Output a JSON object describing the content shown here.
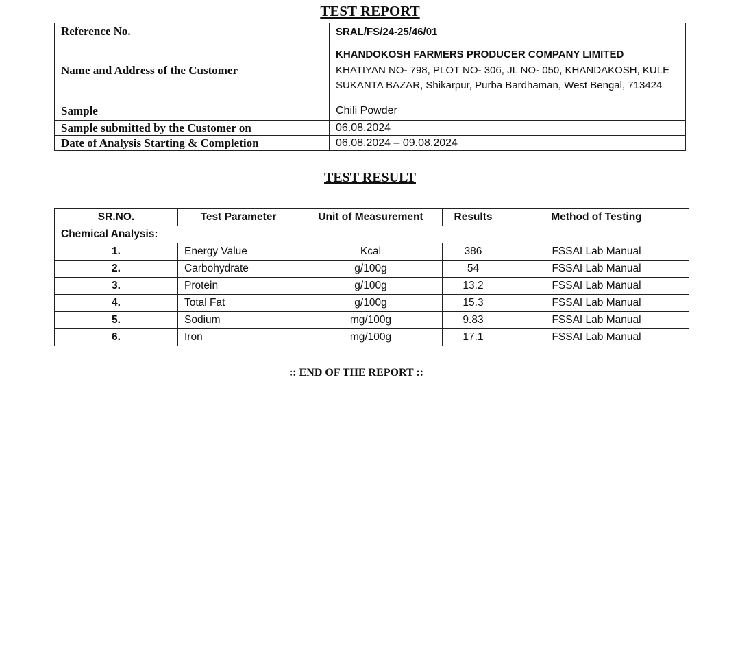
{
  "report_title": "TEST REPORT",
  "info": {
    "reference_label": "Reference No.",
    "reference_value": "SRAL/FS/24-25/46/01",
    "customer_label": "Name and Address of the Customer",
    "customer_name": "KHANDOKOSH FARMERS PRODUCER COMPANY LIMITED",
    "customer_address": "KHATIYAN NO- 798, PLOT NO- 306, JL NO- 050, KHANDAKOSH, KULE SUKANTA BAZAR, Shikarpur, Purba Bardhaman, West Bengal, 713424",
    "sample_label": "Sample",
    "sample_value": "Chili Powder",
    "submitted_label": "Sample submitted by the Customer on",
    "submitted_value": "06.08.2024",
    "analysis_label": "Date of Analysis Starting & Completion",
    "analysis_value": "06.08.2024 – 09.08.2024"
  },
  "result_title": "TEST RESULT",
  "results": {
    "headers": [
      "SR.NO.",
      "Test Parameter",
      "Unit of Measurement",
      "Results",
      "Method of Testing"
    ],
    "section": "Chemical Analysis:",
    "rows": [
      {
        "sr": "1.",
        "param": "Energy Value",
        "unit": "Kcal",
        "result": "386",
        "method": "FSSAI Lab Manual"
      },
      {
        "sr": "2.",
        "param": "Carbohydrate",
        "unit": "g/100g",
        "result": "54",
        "method": "FSSAI Lab Manual"
      },
      {
        "sr": "3.",
        "param": "Protein",
        "unit": "g/100g",
        "result": "13.2",
        "method": "FSSAI Lab Manual"
      },
      {
        "sr": "4.",
        "param": "Total Fat",
        "unit": "g/100g",
        "result": "15.3",
        "method": "FSSAI Lab Manual"
      },
      {
        "sr": "5.",
        "param": "Sodium",
        "unit": "mg/100g",
        "result": "9.83",
        "method": "FSSAI Lab Manual"
      },
      {
        "sr": "6.",
        "param": "Iron",
        "unit": "mg/100g",
        "result": "17.1",
        "method": "FSSAI Lab Manual"
      }
    ]
  },
  "end_text": ":: END OF THE REPORT ::"
}
